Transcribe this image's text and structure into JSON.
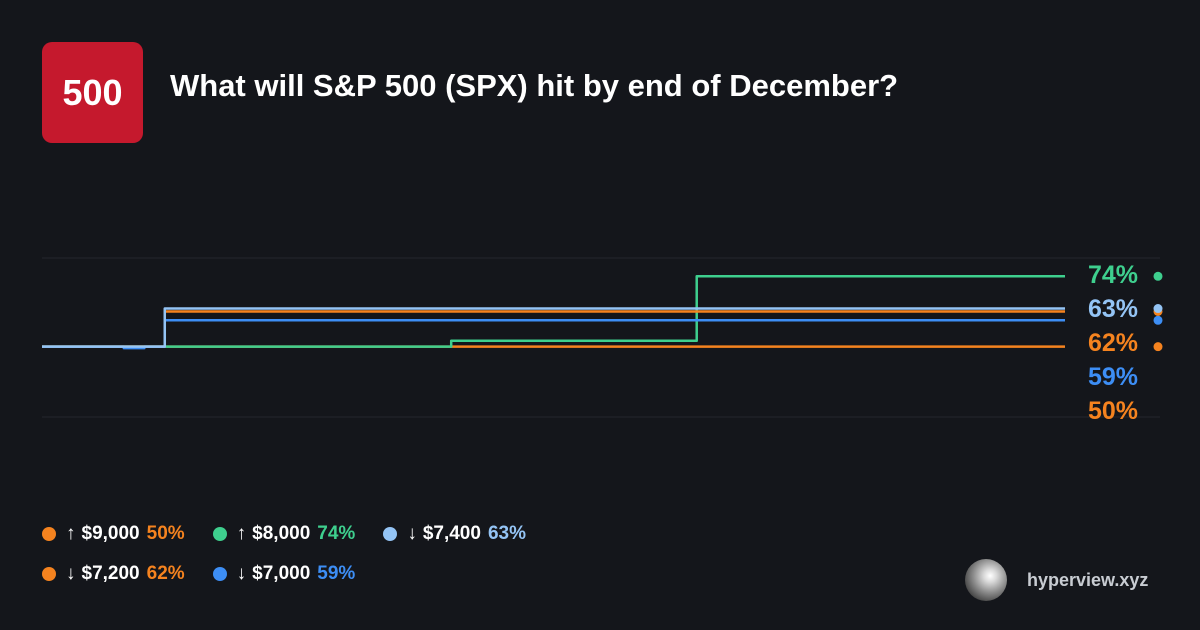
{
  "logo": {
    "text": "500",
    "color": "#c5192d"
  },
  "title": "What will S&P 500 (SPX) hit by end of December?",
  "brand": {
    "text": "hyperview.xyz",
    "icon": "silver-sphere-icon"
  },
  "chart_data": {
    "type": "line",
    "title": "What will S&P 500 (SPX) hit by end of December?",
    "ylim": [
      25,
      100
    ],
    "grid": true,
    "x": [
      0,
      5,
      7,
      8,
      10,
      11,
      12,
      20,
      25,
      30,
      35,
      37,
      38,
      40,
      41,
      55,
      60,
      62,
      63,
      64,
      65,
      70,
      80,
      90,
      100
    ],
    "series": [
      {
        "name": "↑ $9,000",
        "color": "#f5831f",
        "values": [
          50,
          50,
          50,
          50,
          50,
          50,
          50,
          50,
          50,
          50,
          50,
          50,
          50,
          50,
          50,
          50,
          50,
          50,
          50,
          50,
          50,
          50,
          50,
          50,
          50
        ],
        "label": "50%"
      },
      {
        "name": "↑ $8,000",
        "color": "#3ecf8e",
        "values": [
          50,
          50,
          50,
          50,
          50,
          50,
          50,
          50,
          50,
          50,
          50,
          50,
          50,
          52,
          52,
          52,
          52,
          52,
          52,
          74,
          74,
          74,
          74,
          74,
          74
        ],
        "label": "74%"
      },
      {
        "name": "↓ $7,400",
        "color": "#94c4f5",
        "values": [
          50,
          50,
          50,
          50,
          50,
          50,
          63,
          63,
          63,
          63,
          63,
          63,
          63,
          63,
          63,
          63,
          63,
          63,
          63,
          63,
          63,
          63,
          63,
          63,
          63
        ],
        "label": "63%"
      },
      {
        "name": "↓ $7,200",
        "color": "#f5831f",
        "values": [
          50,
          50,
          50,
          50,
          50,
          50,
          62,
          62,
          62,
          62,
          62,
          62,
          62,
          62,
          62,
          62,
          62,
          62,
          62,
          62,
          62,
          62,
          62,
          62,
          62
        ],
        "label": "62%"
      },
      {
        "name": "↓ $7,000",
        "color": "#3d8ef5",
        "values": [
          50,
          50,
          50,
          49.5,
          50,
          50,
          59,
          59,
          59,
          59,
          59,
          59,
          59,
          59,
          59,
          59,
          59,
          59,
          59,
          59,
          59,
          59,
          59,
          59,
          59
        ],
        "label": "59%"
      }
    ]
  },
  "legend": {
    "rows": [
      [
        {
          "color": "#f5831f",
          "arrow": "↑",
          "label": "$9,000",
          "value": "50%"
        },
        {
          "color": "#3ecf8e",
          "arrow": "↑",
          "label": "$8,000",
          "value": "74%"
        },
        {
          "color": "#94c4f5",
          "arrow": "↓",
          "label": "$7,400",
          "value": "63%"
        }
      ],
      [
        {
          "color": "#f5831f",
          "arrow": "↓",
          "label": "$7,200",
          "value": "62%"
        },
        {
          "color": "#3d8ef5",
          "arrow": "↓",
          "label": "$7,000",
          "value": "59%"
        }
      ]
    ]
  }
}
